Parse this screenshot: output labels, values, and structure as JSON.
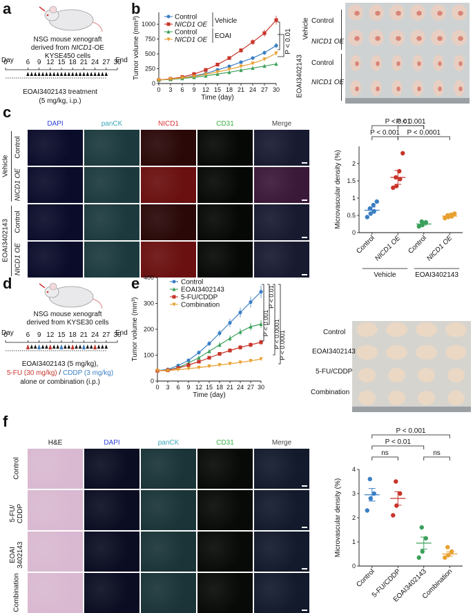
{
  "panel_a": {
    "label": "a",
    "lines": [
      "NSG mouse xenograft",
      "derived from ",
      "NICD1",
      "-OE",
      "KYSE450 cells"
    ],
    "axis_start": "Day",
    "axis_end": "End",
    "ticks": [
      "0",
      "6",
      "9",
      "12",
      "15",
      "18",
      "21",
      "24",
      "27",
      "30"
    ],
    "treatment": "EOAI3402143 treatment",
    "dose": "(5 mg/kg, i.p.)"
  },
  "panel_b": {
    "label": "b",
    "photo_rows": [
      "Control",
      "NICD1 OE",
      "Control",
      "NICD1 OE"
    ],
    "photo_groups": [
      "Vehicle",
      "EOAI3402143"
    ],
    "pvalue": "P < 0.01"
  },
  "panel_c": {
    "label": "c",
    "channels": [
      "DAPI",
      "panCK",
      "NICD1",
      "CD31",
      "Merge"
    ],
    "channel_colors": [
      "#2b3fd8",
      "#3aa6b9",
      "#e03030",
      "#35b040",
      "#444444"
    ],
    "rows": [
      "Control",
      "NICD1 OE",
      "Control",
      "NICD1 OE"
    ],
    "groups": [
      "Vehicle",
      "EOAI3402143"
    ],
    "pvalues": [
      "P < 0.01",
      "P < 0.001",
      "P < 0.001",
      "P < 0.0001"
    ]
  },
  "panel_d": {
    "label": "d",
    "lines": [
      "NSG mouse xenograft",
      "derived from KYSE30 cells"
    ],
    "axis_start": "Day",
    "axis_end": "End",
    "ticks": [
      "0",
      "6",
      "9",
      "12",
      "15",
      "18",
      "21",
      "24",
      "27",
      "30"
    ],
    "treatment1": "EOAI3402143 (5 mg/kg),",
    "fu": "5-FU (30 mg/kg)",
    "sep": " / ",
    "cddp": "CDDP (3 mg/kg)",
    "treatment3": "alone or combination (i.p.)"
  },
  "panel_e": {
    "label": "e",
    "photo_rows": [
      "Control",
      "EOAI3402143",
      "5-FU/CDDP",
      "Combination"
    ],
    "pvalues": [
      "P < 0.001",
      "P < 0.01",
      "P < 0.0001",
      "P < 0.0001"
    ]
  },
  "panel_f": {
    "label": "f",
    "channels": [
      "H&E",
      "DAPI",
      "panCK",
      "CD31",
      "Merge"
    ],
    "rows": [
      "Control",
      "5-FU/\nCDDP",
      "EOAI\n3402143",
      "Combination"
    ],
    "pvalues": [
      "P < 0.001",
      "P < 0.01",
      "ns",
      "ns"
    ]
  },
  "chart_data": [
    {
      "id": "b",
      "type": "line",
      "xlabel": "Time (day)",
      "ylabel": "Tumor volume (mm³)",
      "x": [
        0,
        3,
        6,
        9,
        12,
        15,
        18,
        21,
        24,
        27,
        30
      ],
      "xlim": [
        0,
        30
      ],
      "ylim": [
        0,
        1200
      ],
      "yticks": [
        0,
        250,
        500,
        750,
        1000
      ],
      "legend_groups": [
        "Vehicle",
        "EOAI"
      ],
      "series": [
        {
          "name": "Control",
          "color": "#3b7fc4",
          "marker": "circle",
          "values": [
            60,
            75,
            95,
            130,
            170,
            230,
            290,
            360,
            430,
            520,
            640
          ]
        },
        {
          "name": "NICD1 OE",
          "color": "#c8342a",
          "marker": "square",
          "values": [
            60,
            80,
            110,
            160,
            230,
            320,
            430,
            560,
            700,
            850,
            1070
          ]
        },
        {
          "name": "Control",
          "color": "#3aa05a",
          "marker": "triangle",
          "values": [
            60,
            70,
            85,
            105,
            130,
            160,
            190,
            225,
            260,
            295,
            330
          ]
        },
        {
          "name": "NICD1 OE",
          "color": "#e8a030",
          "marker": "triangle-down",
          "values": [
            60,
            75,
            95,
            120,
            155,
            195,
            240,
            290,
            340,
            410,
            510
          ]
        }
      ]
    },
    {
      "id": "c",
      "type": "scatter",
      "ylabel": "Microvascular density (%)",
      "ylim": [
        0,
        2.5
      ],
      "yticks": [
        0,
        0.5,
        1.0,
        1.5,
        2.0
      ],
      "categories": [
        "Control",
        "NICD1 OE",
        "Control",
        "NICD1 OE"
      ],
      "groups": [
        "Vehicle",
        "EOAI3402143"
      ],
      "colors": [
        "#3b7fc4",
        "#c8342a",
        "#3aa05a",
        "#e8a030"
      ],
      "means": [
        0.65,
        1.6,
        0.25,
        0.48
      ],
      "points": [
        [
          0.45,
          0.55,
          0.62,
          0.7,
          0.8,
          0.9
        ],
        [
          1.3,
          1.35,
          1.55,
          1.6,
          1.78,
          2.3
        ],
        [
          0.18,
          0.22,
          0.3,
          0.32
        ],
        [
          0.42,
          0.45,
          0.47,
          0.5,
          0.52,
          0.55
        ]
      ]
    },
    {
      "id": "e",
      "type": "line",
      "xlabel": "Time (day)",
      "ylabel": "Tumor volume (mm³)",
      "x": [
        0,
        3,
        6,
        9,
        12,
        15,
        18,
        21,
        24,
        27,
        30
      ],
      "xlim": [
        0,
        30
      ],
      "ylim": [
        0,
        400
      ],
      "yticks": [
        0,
        100,
        200,
        300,
        400
      ],
      "series": [
        {
          "name": "Control",
          "color": "#3b7fc4",
          "marker": "circle",
          "values": [
            40,
            45,
            60,
            80,
            110,
            145,
            185,
            225,
            265,
            305,
            345
          ]
        },
        {
          "name": "EOAI3402143",
          "color": "#3aa05a",
          "marker": "triangle",
          "values": [
            40,
            42,
            52,
            70,
            90,
            115,
            140,
            165,
            190,
            210,
            220
          ]
        },
        {
          "name": "5-FU/CDDP",
          "color": "#c8342a",
          "marker": "square",
          "values": [
            40,
            42,
            50,
            62,
            75,
            90,
            105,
            118,
            130,
            140,
            150
          ]
        },
        {
          "name": "Combination",
          "color": "#e8a030",
          "marker": "triangle-down",
          "values": [
            40,
            40,
            44,
            48,
            52,
            57,
            62,
            67,
            72,
            78,
            85
          ]
        }
      ]
    },
    {
      "id": "f",
      "type": "scatter",
      "ylabel": "Microvascular density (%)",
      "ylim": [
        0,
        4
      ],
      "yticks": [
        0,
        1,
        2,
        3,
        4
      ],
      "categories": [
        "Control",
        "5-FU/CDDP",
        "EOAI3402143",
        "Combination"
      ],
      "colors": [
        "#3b7fc4",
        "#c8342a",
        "#3aa05a",
        "#e8a030"
      ],
      "means": [
        2.95,
        2.8,
        0.95,
        0.5
      ],
      "points": [
        [
          2.3,
          2.8,
          3.0,
          3.6
        ],
        [
          2.1,
          2.5,
          3.0,
          3.5
        ],
        [
          0.35,
          0.6,
          1.15,
          1.6
        ],
        [
          0.35,
          0.45,
          0.6,
          0.78
        ]
      ]
    }
  ]
}
